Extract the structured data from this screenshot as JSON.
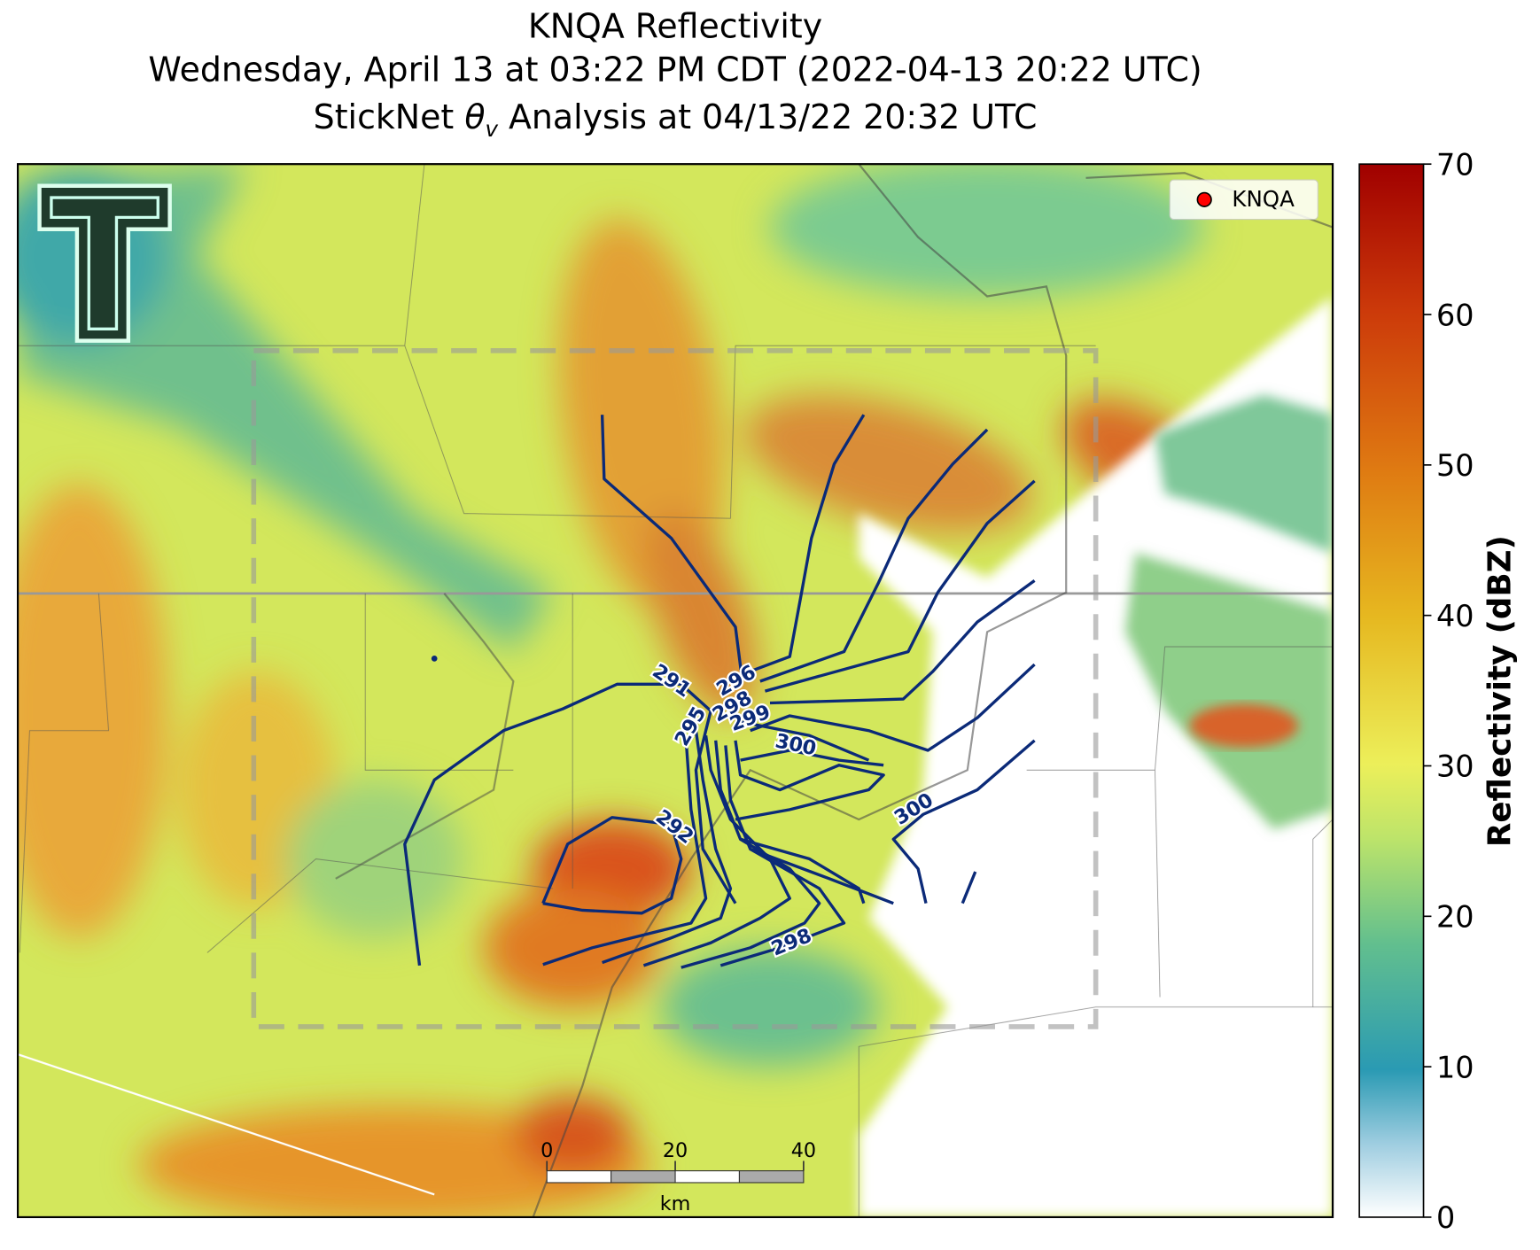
{
  "title": "KNQA Reflectivity",
  "subtitle": "Wednesday, April 13 at 03:22 PM CDT (2022-04-13 20:22 UTC)",
  "analysis_title": {
    "prefix": "StickNet ",
    "symbol": "θ",
    "subscript": "v",
    "suffix": " Analysis at 04/13/22 20:32 UTC"
  },
  "legend": {
    "label": "KNQA"
  },
  "colorbar": {
    "label": "Reflectivity (dBZ)",
    "lim": [
      0,
      70
    ],
    "ticks": [
      0,
      10,
      20,
      30,
      40,
      50,
      60,
      70
    ]
  },
  "scale_bar": {
    "unit": "km",
    "lim": [
      0,
      40
    ],
    "ticks": [
      0,
      20,
      40
    ]
  },
  "contour_labels": [
    291,
    296,
    298,
    295,
    299,
    300,
    292,
    298,
    300
  ]
}
